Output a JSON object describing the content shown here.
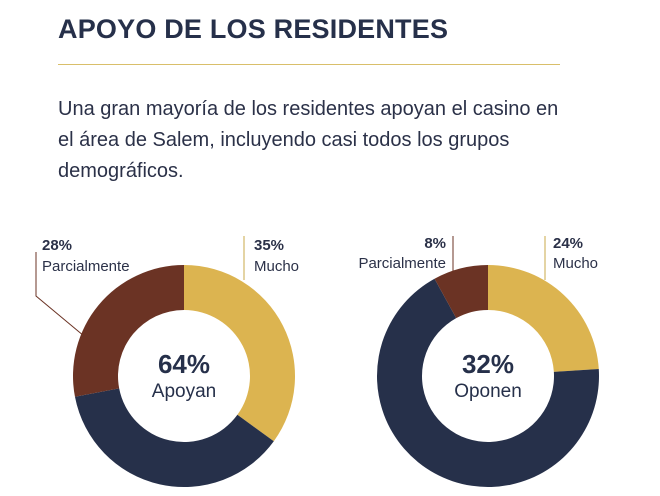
{
  "header": {
    "title": "APOYO DE LOS RESIDENTES",
    "intro": "Una gran mayoría de los residentes apoyan el casino en el área de Salem, incluyendo casi todos los grupos demográficos."
  },
  "colors": {
    "mucho": "#dcb450",
    "parcialmente": "#6b3324",
    "remainder": "#26304a",
    "rule": "#d9bf6a"
  },
  "chart_data": [
    {
      "type": "pie",
      "variant": "donut",
      "center_value": "64%",
      "center_label": "Apoyan",
      "slices": [
        {
          "name": "Mucho",
          "value": 35,
          "label": "35%",
          "color": "#dcb450"
        },
        {
          "name": "Remainder",
          "value": 37,
          "label": "",
          "color": "#26304a"
        },
        {
          "name": "Parcialmente",
          "value": 28,
          "label": "28%",
          "color": "#6b3324"
        }
      ]
    },
    {
      "type": "pie",
      "variant": "donut",
      "center_value": "32%",
      "center_label": "Oponen",
      "slices": [
        {
          "name": "Mucho",
          "value": 24,
          "label": "24%",
          "color": "#dcb450"
        },
        {
          "name": "Remainder",
          "value": 68,
          "label": "",
          "color": "#26304a"
        },
        {
          "name": "Parcialmente",
          "value": 8,
          "label": "8%",
          "color": "#6b3324"
        }
      ]
    }
  ]
}
